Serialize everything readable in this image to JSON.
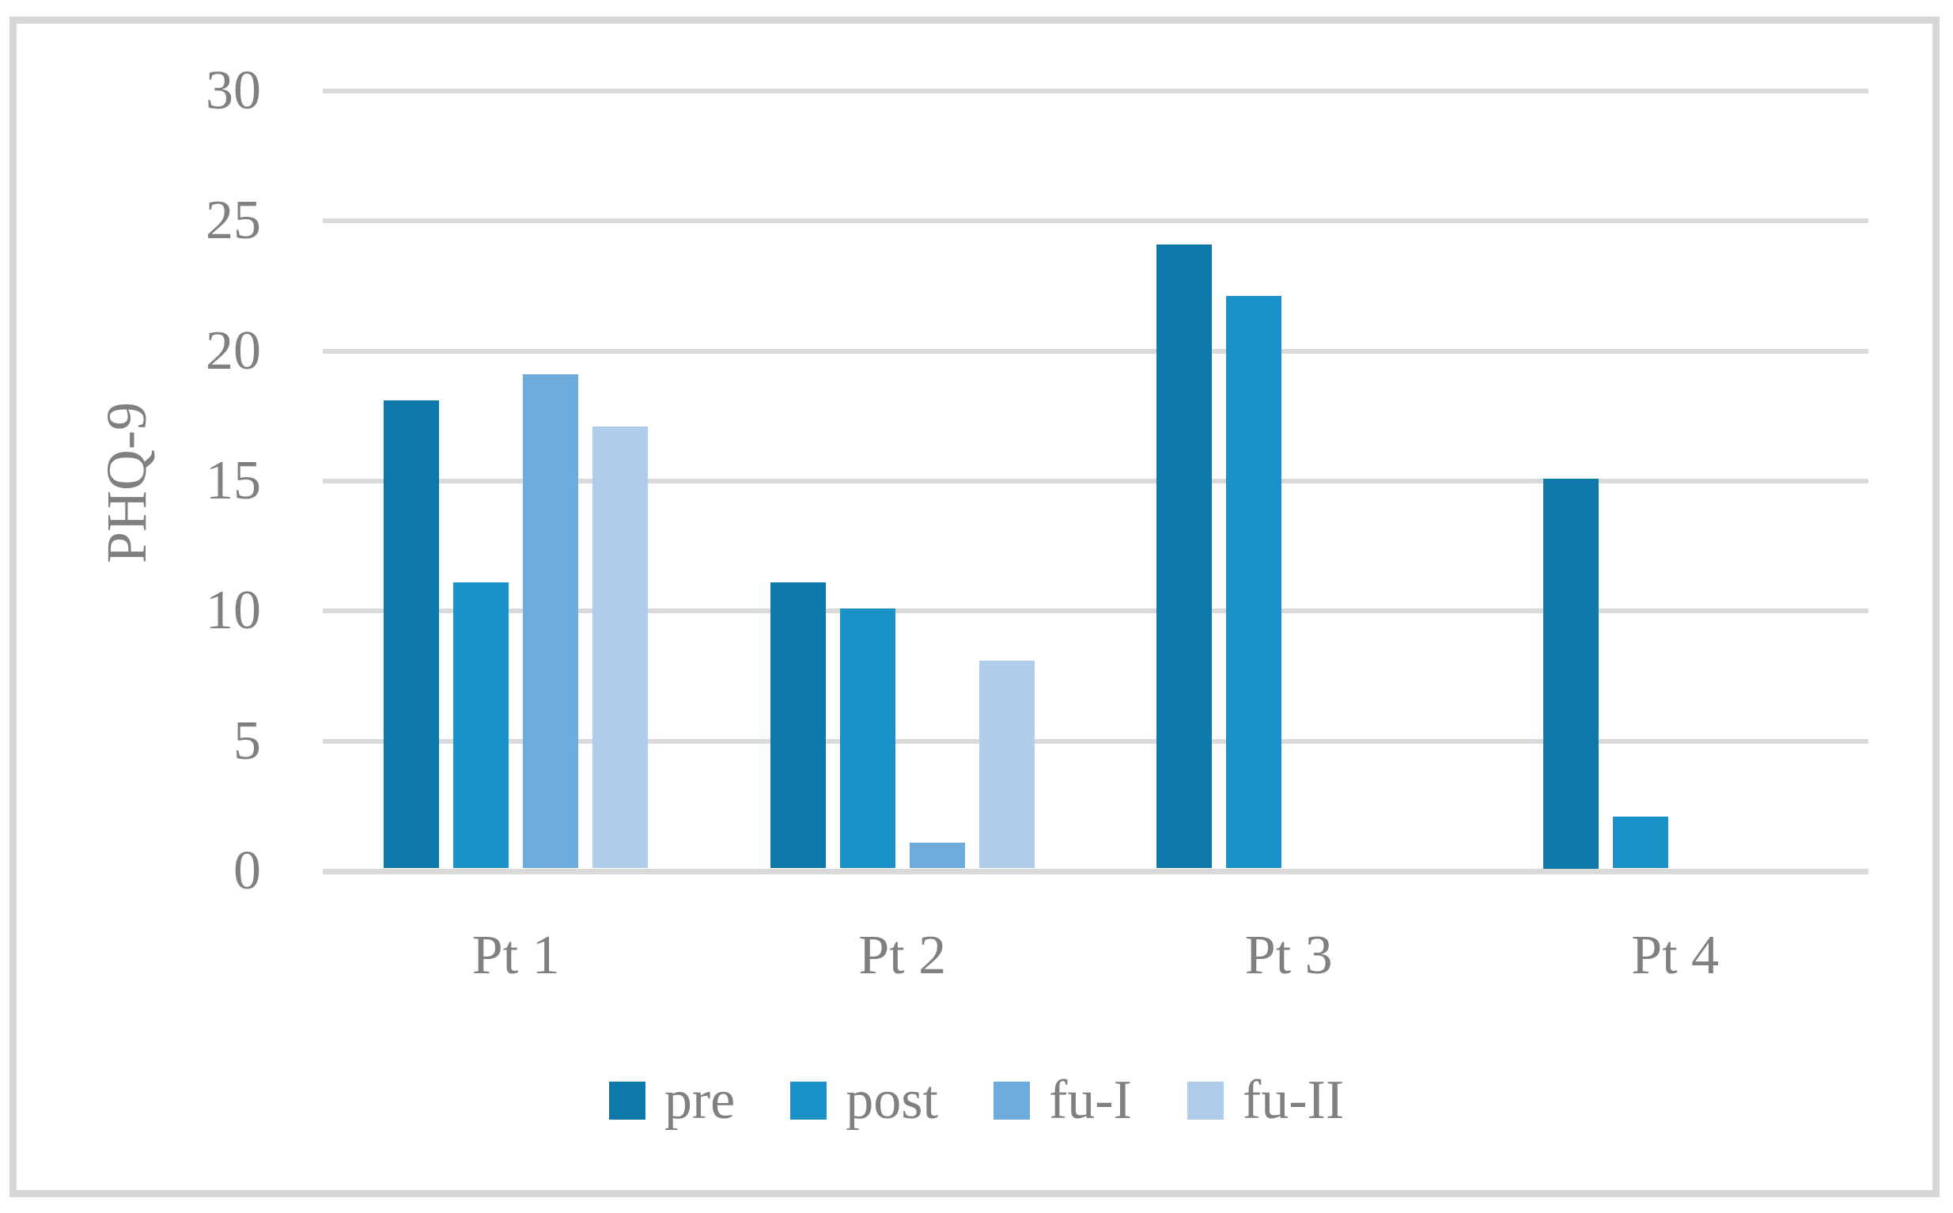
{
  "chart_data": {
    "type": "bar",
    "title": "",
    "xlabel": "",
    "ylabel": "PHQ-9",
    "categories": [
      "Pt 1",
      "Pt 2",
      "Pt 3",
      "Pt 4"
    ],
    "series": [
      {
        "name": "pre",
        "color": "#0E78A8",
        "values": [
          18,
          11,
          24,
          15
        ]
      },
      {
        "name": "post",
        "color": "#1B92C7",
        "values": [
          11,
          10,
          22,
          2
        ]
      },
      {
        "name": "fu-I",
        "color": "#6FACDE",
        "values": [
          19,
          1,
          null,
          null
        ]
      },
      {
        "name": "fu-II",
        "color": "#AFCCEA",
        "values": [
          17,
          8,
          null,
          null
        ]
      }
    ],
    "ylim": [
      0,
      30
    ],
    "yticks": [
      0,
      5,
      10,
      15,
      20,
      25,
      30
    ],
    "grid": true,
    "legend_position": "bottom",
    "colors": {
      "gridline": "#D9D9D9",
      "frame_border": "#D6D6D6",
      "axis_text": "#808080",
      "background": "#FFFFFF"
    }
  }
}
